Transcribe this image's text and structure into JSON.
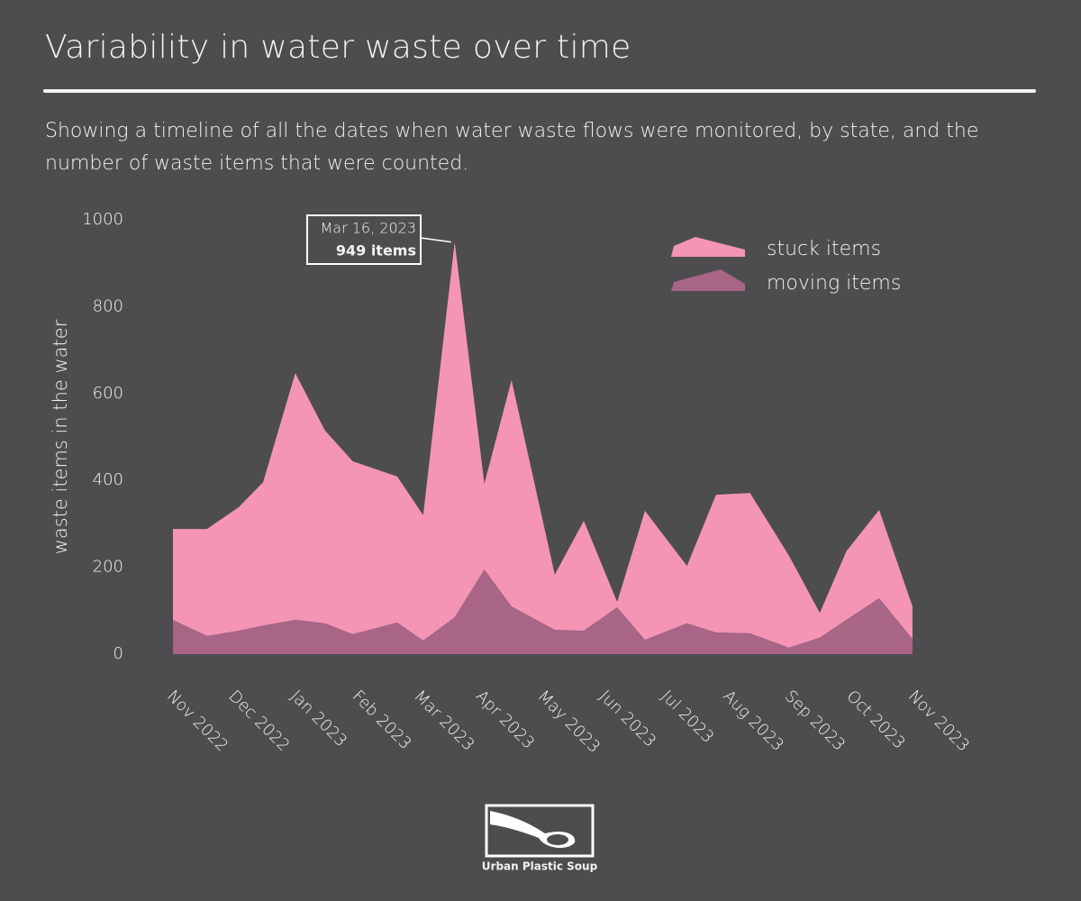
{
  "chart_data": {
    "type": "stacked-area",
    "title": "Variability in water waste over time",
    "subtitle": "Showing a timeline of all the dates when water waste flows were monitored, by state, and the number of waste items that were counted.",
    "ylabel": "waste items in the water",
    "x": [
      0,
      0.55,
      1.06,
      1.46,
      1.98,
      2.46,
      2.91,
      3.63,
      4.05,
      4.56,
      5.04,
      5.48,
      6.18,
      6.65,
      7.19,
      7.64,
      8.32,
      8.79,
      9.34,
      9.97,
      10.47,
      10.9,
      11.43,
      11.97
    ],
    "series": [
      {
        "name": "stuck items",
        "color": "#f495b5",
        "values": [
          209,
          246,
          284,
          330,
          568,
          444,
          398,
          336,
          289,
          864,
          197,
          521,
          127,
          253,
          12,
          297,
          132,
          317,
          323,
          212,
          57,
          158,
          203,
          75
        ]
      },
      {
        "name": "moving items",
        "color": "#a86585",
        "values": [
          79,
          42,
          54,
          66,
          79,
          71,
          46,
          73,
          31,
          85,
          195,
          110,
          56,
          54,
          108,
          33,
          71,
          50,
          48,
          15,
          38,
          79,
          129,
          35
        ]
      }
    ],
    "xlim": [
      0,
      12
    ],
    "xticks": [
      {
        "value": 0,
        "label": "Nov 2022"
      },
      {
        "value": 1,
        "label": "Dec 2022"
      },
      {
        "value": 2,
        "label": "Jan 2023"
      },
      {
        "value": 3,
        "label": "Feb 2023"
      },
      {
        "value": 4,
        "label": "Mar 2023"
      },
      {
        "value": 5,
        "label": "Apr 2023"
      },
      {
        "value": 6,
        "label": "May 2023"
      },
      {
        "value": 7,
        "label": "Jun 2023"
      },
      {
        "value": 8,
        "label": "Jul 2023"
      },
      {
        "value": 9,
        "label": "Aug 2023"
      },
      {
        "value": 10,
        "label": "Sep 2023"
      },
      {
        "value": 11,
        "label": "Oct 2023"
      },
      {
        "value": 12,
        "label": "Nov 2023"
      }
    ],
    "ylim": [
      0,
      1000
    ],
    "yticks": [
      0,
      200,
      400,
      600,
      800,
      1000
    ],
    "grid": false,
    "legend": "top-right",
    "annotation": {
      "label": "Mar 16, 2023",
      "text": "949 items",
      "x": 4.56,
      "y": 949
    }
  },
  "logo": "Urban Plastic Soup"
}
